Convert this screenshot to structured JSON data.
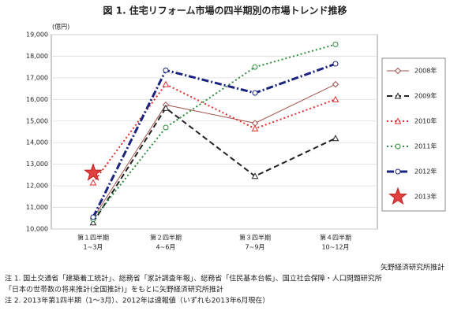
{
  "chart_data": {
    "type": "line",
    "title": "図 1. 住宅リフォーム市場の四半期別の市場トレンド推移",
    "y_unit_label": "(億円)",
    "categories": [
      "第１四半期",
      "第２四半期",
      "第３四半期",
      "第４四半期"
    ],
    "category_sublabels": [
      "1~3月",
      "4~6月",
      "7~9月",
      "10~12月"
    ],
    "ylim": [
      10000,
      19000
    ],
    "yticks": [
      {
        "value": 10000,
        "label": "10,000"
      },
      {
        "value": 11000,
        "label": "11,000"
      },
      {
        "value": 12000,
        "label": "12,000"
      },
      {
        "value": 13000,
        "label": "13,000"
      },
      {
        "value": 14000,
        "label": "14,000"
      },
      {
        "value": 15000,
        "label": "15,000"
      },
      {
        "value": 16000,
        "label": "16,000"
      },
      {
        "value": 17000,
        "label": "17,000"
      },
      {
        "value": 18000,
        "label": "18,000"
      },
      {
        "value": 19000,
        "label": "19,000"
      }
    ],
    "grid": true,
    "legend": "right",
    "series": [
      {
        "name": "2008年",
        "color": "#a0524a",
        "marker": "diamond",
        "line_style": "solid",
        "values": [
          10500,
          15750,
          14900,
          16700
        ]
      },
      {
        "name": "2009年",
        "color": "#222222",
        "marker": "triangle",
        "line_style": "dashed",
        "values": [
          10300,
          15600,
          12450,
          14200
        ]
      },
      {
        "name": "2010年",
        "color": "#e03030",
        "marker": "triangle",
        "line_style": "dotted",
        "values": [
          12150,
          16700,
          14650,
          16000
        ]
      },
      {
        "name": "2011年",
        "color": "#2e8b3e",
        "marker": "circle",
        "line_style": "dotted",
        "values": [
          10450,
          14700,
          17500,
          18550
        ]
      },
      {
        "name": "2012年",
        "color": "#1a237e",
        "marker": "circle",
        "line_style": "dashdot",
        "values": [
          10550,
          17350,
          16300,
          17650
        ]
      },
      {
        "name": "2013年",
        "color": "#e04040",
        "marker": "star",
        "line_style": "none",
        "values": [
          12600,
          null,
          null,
          null
        ]
      }
    ],
    "source": "矢野経済研究所推計",
    "notes": [
      "注 1. 国土交通省「建築着工統計」、総務省「家計調査年報」、総務省「住民基本台帳」、国立社会保障・人口問題研究所",
      "「日本の世帯数の将来推計(全国推計)」をもとに矢野経済研究所推計",
      "注 2. 2013年第1四半期（1～3月）、2012年は速報値（いずれも2013年6月現在）"
    ]
  }
}
